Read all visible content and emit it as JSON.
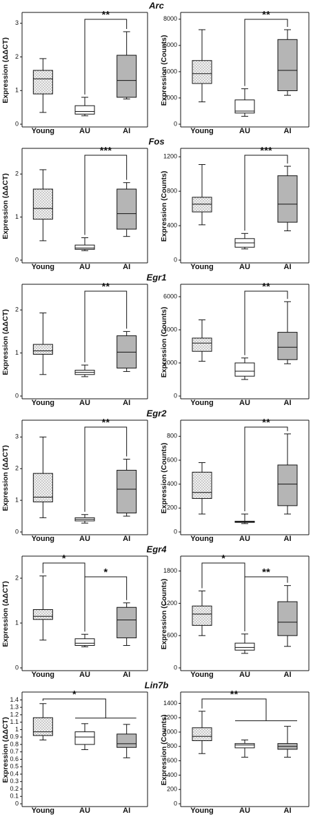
{
  "chart_data": [
    {
      "type": "box",
      "title": "Arc",
      "ylabel": "Expression (ΔΔCT)",
      "categories": [
        "Young",
        "AU",
        "AI"
      ],
      "colors": [
        "dots",
        "#ffffff",
        "#b5b5b5"
      ],
      "ylim": [
        0,
        3.2
      ],
      "yticks": [
        0,
        1,
        2,
        3
      ],
      "boxes": [
        {
          "min": 0.35,
          "q1": 0.9,
          "median": 1.35,
          "q3": 1.6,
          "max": 1.95
        },
        {
          "min": 0.25,
          "q1": 0.3,
          "median": 0.38,
          "q3": 0.55,
          "max": 0.8
        },
        {
          "min": 0.75,
          "q1": 0.8,
          "median": 1.3,
          "q3": 2.05,
          "max": 2.75
        }
      ],
      "annotations": [
        {
          "text": "**",
          "between": [
            "AU",
            "AI"
          ]
        }
      ]
    },
    {
      "type": "box",
      "ylabel": "Expression (Counts)",
      "categories": [
        "Young",
        "AU",
        "AI"
      ],
      "colors": [
        "dots",
        "#ffffff",
        "#b5b5b5"
      ],
      "ylim": [
        0,
        8200
      ],
      "yticks": [
        0,
        2000,
        4000,
        6000,
        8000
      ],
      "boxes": [
        {
          "min": 1700,
          "q1": 3100,
          "median": 3850,
          "q3": 4850,
          "max": 7200
        },
        {
          "min": 600,
          "q1": 850,
          "median": 1000,
          "q3": 1850,
          "max": 2700
        },
        {
          "min": 2200,
          "q1": 2550,
          "median": 4100,
          "q3": 6450,
          "max": 7200
        }
      ],
      "annotations": [
        {
          "text": "**",
          "between": [
            "AU",
            "AI"
          ]
        }
      ]
    },
    {
      "type": "box",
      "title": "Fos",
      "ylabel": "Expression (ΔΔCT)",
      "categories": [
        "Young",
        "AU",
        "AI"
      ],
      "colors": [
        "dots",
        "#ffffff",
        "#b5b5b5"
      ],
      "ylim": [
        0,
        2.5
      ],
      "yticks": [
        0,
        1,
        2
      ],
      "boxes": [
        {
          "min": 0.45,
          "q1": 0.95,
          "median": 1.2,
          "q3": 1.65,
          "max": 2.1
        },
        {
          "min": 0.22,
          "q1": 0.25,
          "median": 0.28,
          "q3": 0.35,
          "max": 0.52
        },
        {
          "min": 0.55,
          "q1": 0.72,
          "median": 1.08,
          "q3": 1.65,
          "max": 1.8
        }
      ],
      "annotations": [
        {
          "text": "***",
          "between": [
            "AU",
            "AI"
          ]
        }
      ]
    },
    {
      "type": "box",
      "ylabel": "Expression (Counts)",
      "categories": [
        "Young",
        "AU",
        "AI"
      ],
      "colors": [
        "dots",
        "#ffffff",
        "#b5b5b5"
      ],
      "ylim": [
        0,
        1250
      ],
      "yticks": [
        0,
        400,
        800,
        1200
      ],
      "boxes": [
        {
          "min": 410,
          "q1": 560,
          "median": 650,
          "q3": 730,
          "max": 1110
        },
        {
          "min": 130,
          "q1": 150,
          "median": 200,
          "q3": 250,
          "max": 310
        },
        {
          "min": 340,
          "q1": 440,
          "median": 650,
          "q3": 980,
          "max": 1090
        }
      ],
      "annotations": [
        {
          "text": "***",
          "between": [
            "AU",
            "AI"
          ]
        }
      ]
    },
    {
      "type": "box",
      "title": "Egr1",
      "ylabel": "Expression (ΔΔCT)",
      "categories": [
        "Young",
        "AU",
        "AI"
      ],
      "colors": [
        "dots",
        "#ffffff",
        "#b5b5b5"
      ],
      "ylim": [
        0,
        2.5
      ],
      "yticks": [
        0,
        1,
        2
      ],
      "boxes": [
        {
          "min": 0.5,
          "q1": 0.97,
          "median": 1.05,
          "q3": 1.2,
          "max": 1.93
        },
        {
          "min": 0.45,
          "q1": 0.5,
          "median": 0.55,
          "q3": 0.6,
          "max": 0.72
        },
        {
          "min": 0.57,
          "q1": 0.65,
          "median": 1.02,
          "q3": 1.4,
          "max": 1.5
        }
      ],
      "annotations": [
        {
          "text": "**",
          "between": [
            "AU",
            "AI"
          ]
        }
      ]
    },
    {
      "type": "box",
      "ylabel": "Expression (Counts)",
      "categories": [
        "Young",
        "AU",
        "AI"
      ],
      "colors": [
        "dots",
        "#ffffff",
        "#b5b5b5"
      ],
      "ylim": [
        0,
        6500
      ],
      "yticks": [
        0,
        2000,
        4000,
        6000
      ],
      "boxes": [
        {
          "min": 2100,
          "q1": 2700,
          "median": 3200,
          "q3": 3500,
          "max": 4600
        },
        {
          "min": 1000,
          "q1": 1200,
          "median": 1500,
          "q3": 2000,
          "max": 2300
        },
        {
          "min": 1950,
          "q1": 2200,
          "median": 2950,
          "q3": 3850,
          "max": 5700
        }
      ],
      "annotations": [
        {
          "text": "**",
          "between": [
            "AU",
            "AI"
          ]
        }
      ]
    },
    {
      "type": "box",
      "title": "Egr2",
      "ylabel": "Expression (ΔΔCT)",
      "categories": [
        "Young",
        "AU",
        "AI"
      ],
      "colors": [
        "dots",
        "#ffffff",
        "#b5b5b5"
      ],
      "ylim": [
        0,
        3.4
      ],
      "yticks": [
        0,
        1,
        2,
        3
      ],
      "boxes": [
        {
          "min": 0.45,
          "q1": 0.95,
          "median": 1.1,
          "q3": 1.85,
          "max": 3.0
        },
        {
          "min": 0.28,
          "q1": 0.35,
          "median": 0.4,
          "q3": 0.45,
          "max": 0.55
        },
        {
          "min": 0.5,
          "q1": 0.6,
          "median": 1.35,
          "q3": 1.95,
          "max": 2.3
        }
      ],
      "annotations": [
        {
          "text": "**",
          "between": [
            "AU",
            "AI"
          ]
        }
      ]
    },
    {
      "type": "box",
      "ylabel": "Expression (Counts)",
      "categories": [
        "Young",
        "AU",
        "AI"
      ],
      "colors": [
        "dots",
        "#ffffff",
        "#b5b5b5"
      ],
      "ylim": [
        0,
        900
      ],
      "yticks": [
        0,
        200,
        400,
        600,
        800
      ],
      "boxes": [
        {
          "min": 150,
          "q1": 280,
          "median": 330,
          "q3": 500,
          "max": 580
        },
        {
          "min": 70,
          "q1": 80,
          "median": 85,
          "q3": 90,
          "max": 150
        },
        {
          "min": 150,
          "q1": 220,
          "median": 400,
          "q3": 560,
          "max": 820
        }
      ],
      "annotations": [
        {
          "text": "**",
          "between": [
            "AU",
            "AI"
          ]
        }
      ]
    },
    {
      "type": "box",
      "title": "Egr4",
      "ylabel": "Expression (ΔΔCT)",
      "categories": [
        "Young",
        "AU",
        "AI"
      ],
      "colors": [
        "dots",
        "#ffffff",
        "#b5b5b5"
      ],
      "ylim": [
        0,
        2.4
      ],
      "yticks": [
        0,
        1,
        2
      ],
      "boxes": [
        {
          "min": 0.62,
          "q1": 1.08,
          "median": 1.15,
          "q3": 1.3,
          "max": 2.05
        },
        {
          "min": 0.47,
          "q1": 0.5,
          "median": 0.55,
          "q3": 0.65,
          "max": 0.75
        },
        {
          "min": 0.5,
          "q1": 0.67,
          "median": 1.07,
          "q3": 1.35,
          "max": 1.45
        }
      ],
      "annotations": [
        {
          "text": "*",
          "between": [
            "Young",
            "AU"
          ]
        },
        {
          "text": "*",
          "between": [
            "AU",
            "AI"
          ]
        }
      ]
    },
    {
      "type": "box",
      "ylabel": "Expression (Counts)",
      "categories": [
        "Young",
        "AU",
        "AI"
      ],
      "colors": [
        "dots",
        "#ffffff",
        "#b5b5b5"
      ],
      "ylim": [
        0,
        2000
      ],
      "yticks": [
        0,
        600,
        1200,
        1800
      ],
      "boxes": [
        {
          "min": 600,
          "q1": 790,
          "median": 1000,
          "q3": 1150,
          "max": 1430
        },
        {
          "min": 270,
          "q1": 330,
          "median": 380,
          "q3": 460,
          "max": 630
        },
        {
          "min": 400,
          "q1": 600,
          "median": 850,
          "q3": 1230,
          "max": 1530
        }
      ],
      "annotations": [
        {
          "text": "*",
          "between": [
            "Young",
            "AU"
          ]
        },
        {
          "text": "**",
          "between": [
            "AU",
            "AI"
          ]
        }
      ]
    },
    {
      "type": "box",
      "title": "Lin7b",
      "ylabel": "Expression (ΔΔCT)",
      "categories": [
        "Young",
        "AU",
        "AI"
      ],
      "colors": [
        "dots",
        "#ffffff",
        "#b5b5b5"
      ],
      "ylim": [
        0,
        1.45
      ],
      "yticks": [
        0,
        0.1,
        0.2,
        0.3,
        0.4,
        0.5,
        0.6,
        0.7,
        0.8,
        0.9,
        1,
        1.1,
        1.2,
        1.3,
        1.4
      ],
      "boxes": [
        {
          "min": 0.86,
          "q1": 0.92,
          "median": 0.97,
          "q3": 1.16,
          "max": 1.35
        },
        {
          "min": 0.73,
          "q1": 0.8,
          "median": 0.9,
          "q3": 0.97,
          "max": 1.08
        },
        {
          "min": 0.62,
          "q1": 0.76,
          "median": 0.81,
          "q3": 0.94,
          "max": 1.07
        }
      ],
      "annotations": [
        {
          "text": "*",
          "between": [
            "Young",
            "AU",
            "AI"
          ]
        }
      ]
    },
    {
      "type": "box",
      "ylabel": "Expression (Counts)",
      "categories": [
        "Young",
        "AU",
        "AI"
      ],
      "colors": [
        "dots",
        "#ffffff",
        "#b5b5b5"
      ],
      "ylim": [
        0,
        1500
      ],
      "yticks": [
        0,
        200,
        400,
        600,
        800,
        1000,
        1200,
        1400
      ],
      "boxes": [
        {
          "min": 700,
          "q1": 880,
          "median": 940,
          "q3": 1060,
          "max": 1290
        },
        {
          "min": 650,
          "q1": 780,
          "median": 820,
          "q3": 840,
          "max": 890
        },
        {
          "min": 650,
          "q1": 760,
          "median": 800,
          "q3": 840,
          "max": 1080
        }
      ],
      "annotations": [
        {
          "text": "**",
          "between": [
            "Young",
            "AU",
            "AI"
          ]
        }
      ]
    }
  ]
}
